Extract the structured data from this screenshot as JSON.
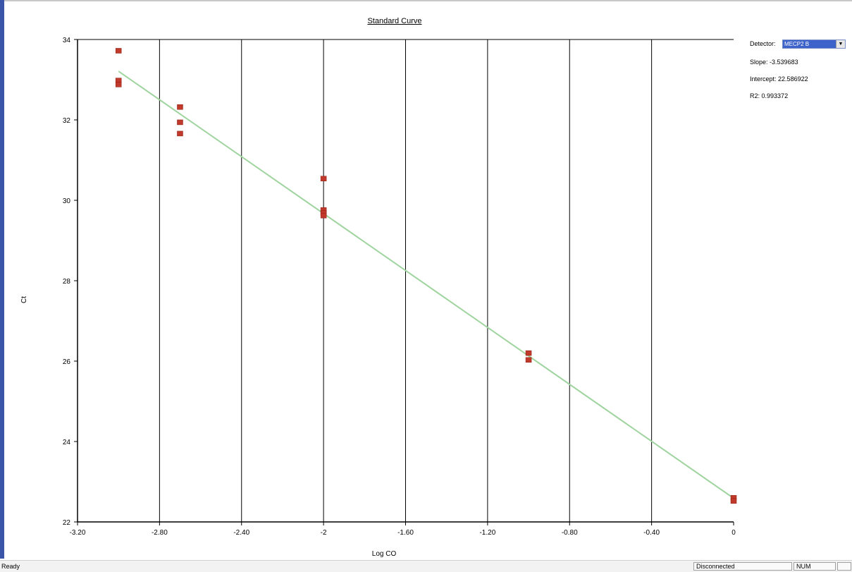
{
  "chart_data": {
    "type": "scatter",
    "title": "Standard Curve",
    "xlabel": "Log CO",
    "ylabel": "Ct",
    "xlim": [
      -3.2,
      0
    ],
    "ylim": [
      22,
      34
    ],
    "x_ticks": [
      "-3.20",
      "-2.80",
      "-2.40",
      "-2",
      "-1.60",
      "-1.20",
      "-0.80",
      "-0.40",
      "0"
    ],
    "y_ticks": [
      "22",
      "24",
      "26",
      "28",
      "30",
      "32",
      "34"
    ],
    "grid": "vertical",
    "points": [
      {
        "x": -3.0,
        "y": 33.72
      },
      {
        "x": -3.0,
        "y": 32.98
      },
      {
        "x": -3.0,
        "y": 32.88
      },
      {
        "x": -2.7,
        "y": 32.32
      },
      {
        "x": -2.7,
        "y": 31.94
      },
      {
        "x": -2.7,
        "y": 31.66
      },
      {
        "x": -2.0,
        "y": 30.54
      },
      {
        "x": -2.0,
        "y": 29.76
      },
      {
        "x": -2.0,
        "y": 29.69
      },
      {
        "x": -2.0,
        "y": 29.62
      },
      {
        "x": -1.0,
        "y": 26.2
      },
      {
        "x": -1.0,
        "y": 26.03
      },
      {
        "x": 0.0,
        "y": 22.6
      },
      {
        "x": 0.0,
        "y": 22.52
      }
    ],
    "fit_line": {
      "x1": -3.0,
      "y1": 33.21,
      "x2": 0.0,
      "y2": 22.59
    },
    "point_color": "#c0392b",
    "line_color": "#9fd49f"
  },
  "panel": {
    "detector_label": "Detector:",
    "detector_value": "MECP2 B",
    "slope_label": "Slope:",
    "slope_value": "-3.539683",
    "intercept_label": "Intercept:",
    "intercept_value": "22.586922",
    "r2_label": "R2:",
    "r2_value": "0.993372"
  },
  "status": {
    "text": "Ready",
    "connection": "Disconnected",
    "num": "NUM"
  }
}
